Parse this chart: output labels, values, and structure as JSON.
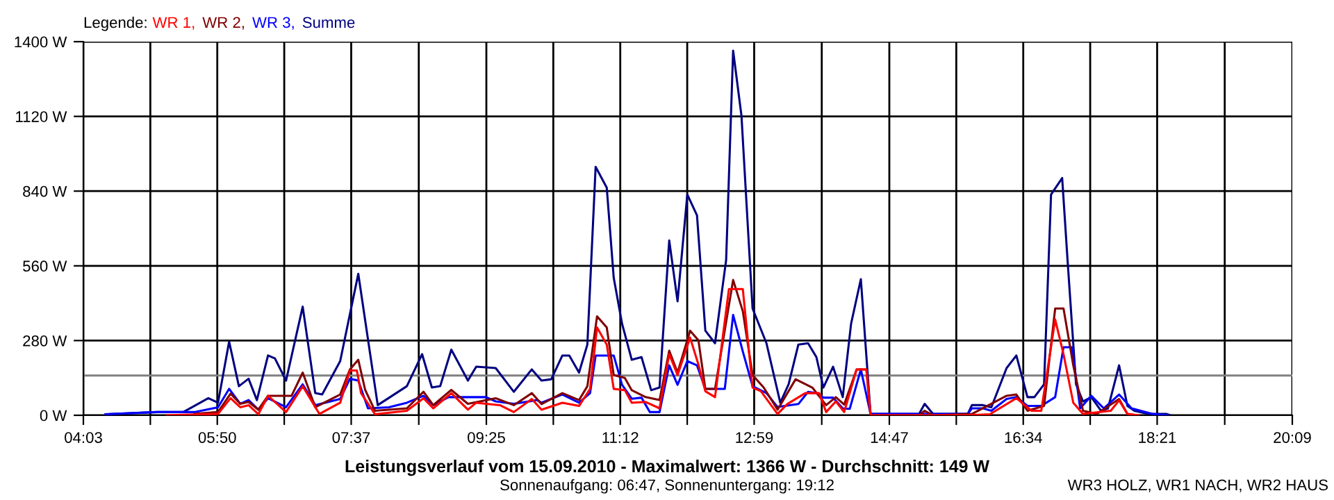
{
  "chart_data": {
    "type": "line",
    "title": "Leistungsverlauf vom 15.09.2010 - Maximalwert: 1366 W - Durchschnitt: 149 W",
    "subtitle": "Sonnenaufgang: 06:47, Sonnenuntergang: 19:12",
    "annotations": [
      "WR3 HOLZ, WR1 NACH, WR2 HAUS"
    ],
    "legend_title": "Legende:",
    "legend": "top left",
    "grid": true,
    "line_style": "solid",
    "xlim": [
      4.05,
      20.15
    ],
    "xticks": [
      {
        "value": 4.05,
        "label": "04:03"
      },
      {
        "value": 4.9417,
        "label": null
      },
      {
        "value": 5.8333,
        "label": "05:50"
      },
      {
        "value": 6.725,
        "label": null
      },
      {
        "value": 7.6167,
        "label": "07:37"
      },
      {
        "value": 8.5167,
        "label": null
      },
      {
        "value": 9.4167,
        "label": "09:25"
      },
      {
        "value": 10.3083,
        "label": null
      },
      {
        "value": 11.2,
        "label": "11:12"
      },
      {
        "value": 12.0917,
        "label": null
      },
      {
        "value": 12.9833,
        "label": "12:59"
      },
      {
        "value": 13.8833,
        "label": null
      },
      {
        "value": 14.7833,
        "label": "14:47"
      },
      {
        "value": 15.675,
        "label": null
      },
      {
        "value": 16.5667,
        "label": "16:34"
      },
      {
        "value": 17.4583,
        "label": null
      },
      {
        "value": 18.35,
        "label": "18:21"
      },
      {
        "value": 19.25,
        "label": null
      },
      {
        "value": 20.15,
        "label": "20:09"
      }
    ],
    "ylim": [
      0,
      1400
    ],
    "yticks": [
      {
        "value": 0,
        "label": "0 W"
      },
      {
        "value": 280,
        "label": "280 W"
      },
      {
        "value": 560,
        "label": "560 W"
      },
      {
        "value": 840,
        "label": "840 W"
      },
      {
        "value": 1120,
        "label": "1120 W"
      },
      {
        "value": 1400,
        "label": "1400 W"
      }
    ],
    "ref_lines": [
      {
        "axis": "y",
        "value": 149,
        "color": "#808080"
      }
    ],
    "series": [
      {
        "name": "WR 1,",
        "color": "#ff0000",
        "x": [
          5.159,
          5.843,
          6.01,
          6.139,
          6.25,
          6.38,
          6.509,
          6.749,
          6.971,
          7.193,
          7.47,
          7.6,
          7.692,
          7.748,
          7.933,
          8.358,
          8.58,
          8.709,
          8.95,
          9.171,
          9.282,
          9.597,
          9.782,
          10.022,
          10.151,
          10.429,
          10.651,
          10.798,
          10.891,
          11.02,
          11.113,
          11.261,
          11.353,
          11.538,
          11.723,
          11.852,
          11.963,
          12.13,
          12.241,
          12.333,
          12.462,
          12.647,
          12.832,
          12.962,
          13.073,
          13.295,
          13.424,
          13.664,
          13.849,
          13.942,
          14.071,
          14.182,
          14.348,
          14.478,
          14.533,
          15.828,
          16.123,
          16.475,
          16.678,
          16.807,
          16.992,
          17.103,
          17.233,
          17.362,
          17.732,
          17.843,
          17.954,
          18.102
        ],
        "values": [
          0,
          5,
          64,
          30,
          38,
          4,
          73,
          12,
          109,
          5,
          47,
          168,
          168,
          83,
          4,
          17,
          64,
          26,
          83,
          21,
          47,
          38,
          12,
          61,
          21,
          47,
          35,
          99,
          329,
          265,
          99,
          94,
          47,
          50,
          26,
          229,
          151,
          291,
          190,
          90,
          68,
          473,
          473,
          104,
          90,
          5,
          42,
          83,
          83,
          12,
          52,
          12,
          172,
          172,
          0,
          0,
          4,
          64,
          17,
          17,
          359,
          229,
          47,
          5,
          17,
          56,
          5,
          0
        ]
      },
      {
        "name": "WR 2,",
        "color": "#800000",
        "x": [
          5.529,
          5.843,
          6.01,
          6.139,
          6.25,
          6.38,
          6.509,
          6.731,
          6.823,
          6.971,
          7.138,
          7.47,
          7.6,
          7.711,
          7.803,
          7.933,
          8.358,
          8.58,
          8.709,
          8.95,
          9.171,
          9.541,
          9.782,
          10.022,
          10.151,
          10.429,
          10.651,
          10.762,
          10.891,
          11.02,
          11.113,
          11.261,
          11.353,
          11.538,
          11.723,
          11.852,
          11.963,
          12.13,
          12.241,
          12.333,
          12.462,
          12.703,
          12.832,
          12.962,
          13.11,
          13.295,
          13.535,
          13.757,
          13.942,
          14.071,
          14.182,
          14.348,
          14.478,
          14.533,
          15.18,
          15.254,
          15.365,
          15.883,
          16.345,
          16.475,
          16.623,
          16.844,
          16.992,
          17.103,
          17.233,
          17.362,
          17.547,
          17.843,
          17.954,
          18.065
        ],
        "values": [
          5,
          12,
          81,
          43,
          50,
          21,
          73,
          73,
          73,
          160,
          30,
          78,
          172,
          208,
          95,
          17,
          26,
          88,
          38,
          95,
          43,
          64,
          38,
          83,
          42,
          83,
          57,
          109,
          371,
          329,
          151,
          140,
          94,
          68,
          57,
          242,
          160,
          317,
          281,
          99,
          99,
          507,
          390,
          151,
          104,
          21,
          135,
          104,
          38,
          68,
          40,
          172,
          172,
          0,
          0,
          17,
          0,
          5,
          73,
          78,
          17,
          35,
          400,
          400,
          187,
          17,
          5,
          61,
          5,
          0
        ]
      },
      {
        "name": "WR 3,",
        "color": "#0000ff",
        "x": [
          4.346,
          5.03,
          5.529,
          5.843,
          5.991,
          6.139,
          6.25,
          6.38,
          6.509,
          6.749,
          6.971,
          7.138,
          7.47,
          7.6,
          7.711,
          7.84,
          8.118,
          8.358,
          8.58,
          8.709,
          8.913,
          9.412,
          9.541,
          9.782,
          10.096,
          10.151,
          10.429,
          10.651,
          10.798,
          10.872,
          11.113,
          11.224,
          11.353,
          11.483,
          11.594,
          11.723,
          11.852,
          11.963,
          12.093,
          12.222,
          12.333,
          12.592,
          12.703,
          12.832,
          12.962,
          13.147,
          13.295,
          13.572,
          13.701,
          13.812,
          13.905,
          14.034,
          14.163,
          14.256,
          14.404,
          14.533,
          15.828,
          15.883,
          16.031,
          16.142,
          16.345,
          16.475,
          16.623,
          16.807,
          16.992,
          17.103,
          17.214,
          17.325,
          17.473,
          17.639,
          17.843,
          18.009,
          18.287,
          18.471
        ],
        "values": [
          4,
          12,
          12,
          30,
          99,
          43,
          57,
          21,
          64,
          30,
          116,
          38,
          61,
          137,
          130,
          26,
          30,
          47,
          73,
          38,
          68,
          68,
          52,
          43,
          57,
          47,
          78,
          47,
          83,
          224,
          224,
          114,
          62,
          66,
          12,
          12,
          187,
          114,
          203,
          187,
          99,
          99,
          376,
          239,
          109,
          83,
          31,
          42,
          88,
          83,
          66,
          66,
          26,
          24,
          172,
          5,
          5,
          26,
          26,
          17,
          61,
          68,
          35,
          35,
          68,
          255,
          255,
          26,
          73,
          26,
          78,
          26,
          5,
          0
        ]
      },
      {
        "name": "Summe",
        "color": "#000080",
        "x": [
          4.346,
          5.03,
          5.381,
          5.714,
          5.843,
          5.991,
          6.121,
          6.25,
          6.361,
          6.509,
          6.601,
          6.749,
          6.971,
          7.138,
          7.23,
          7.47,
          7.711,
          7.97,
          8.358,
          8.561,
          8.691,
          8.802,
          8.95,
          9.171,
          9.282,
          9.541,
          9.782,
          10.022,
          10.151,
          10.281,
          10.429,
          10.521,
          10.651,
          10.762,
          10.872,
          11.02,
          11.113,
          11.224,
          11.353,
          11.483,
          11.612,
          11.723,
          11.852,
          11.963,
          12.093,
          12.222,
          12.333,
          12.462,
          12.61,
          12.703,
          12.814,
          12.962,
          13.147,
          13.331,
          13.442,
          13.572,
          13.701,
          13.812,
          13.905,
          14.034,
          14.163,
          14.274,
          14.404,
          14.533,
          15.18,
          15.254,
          15.365,
          15.828,
          15.883,
          16.031,
          16.142,
          16.345,
          16.475,
          16.623,
          16.715,
          16.844,
          16.937,
          17.085,
          17.159,
          17.27,
          17.362,
          17.473,
          17.602,
          17.695,
          17.843,
          17.954,
          18.046,
          18.231,
          18.471,
          18.527
        ],
        "values": [
          4,
          12,
          12,
          64,
          47,
          276,
          109,
          137,
          57,
          224,
          213,
          130,
          407,
          83,
          78,
          203,
          530,
          38,
          109,
          229,
          104,
          109,
          246,
          130,
          182,
          177,
          88,
          172,
          130,
          135,
          224,
          224,
          160,
          265,
          931,
          853,
          515,
          343,
          208,
          218,
          94,
          104,
          655,
          427,
          827,
          749,
          317,
          270,
          582,
          1366,
          1123,
          400,
          270,
          47,
          116,
          265,
          270,
          218,
          104,
          182,
          68,
          343,
          510,
          5,
          5,
          43,
          5,
          5,
          38,
          38,
          30,
          177,
          224,
          68,
          68,
          116,
          827,
          889,
          572,
          116,
          52,
          68,
          17,
          26,
          187,
          35,
          17,
          5,
          5,
          0
        ]
      }
    ]
  }
}
